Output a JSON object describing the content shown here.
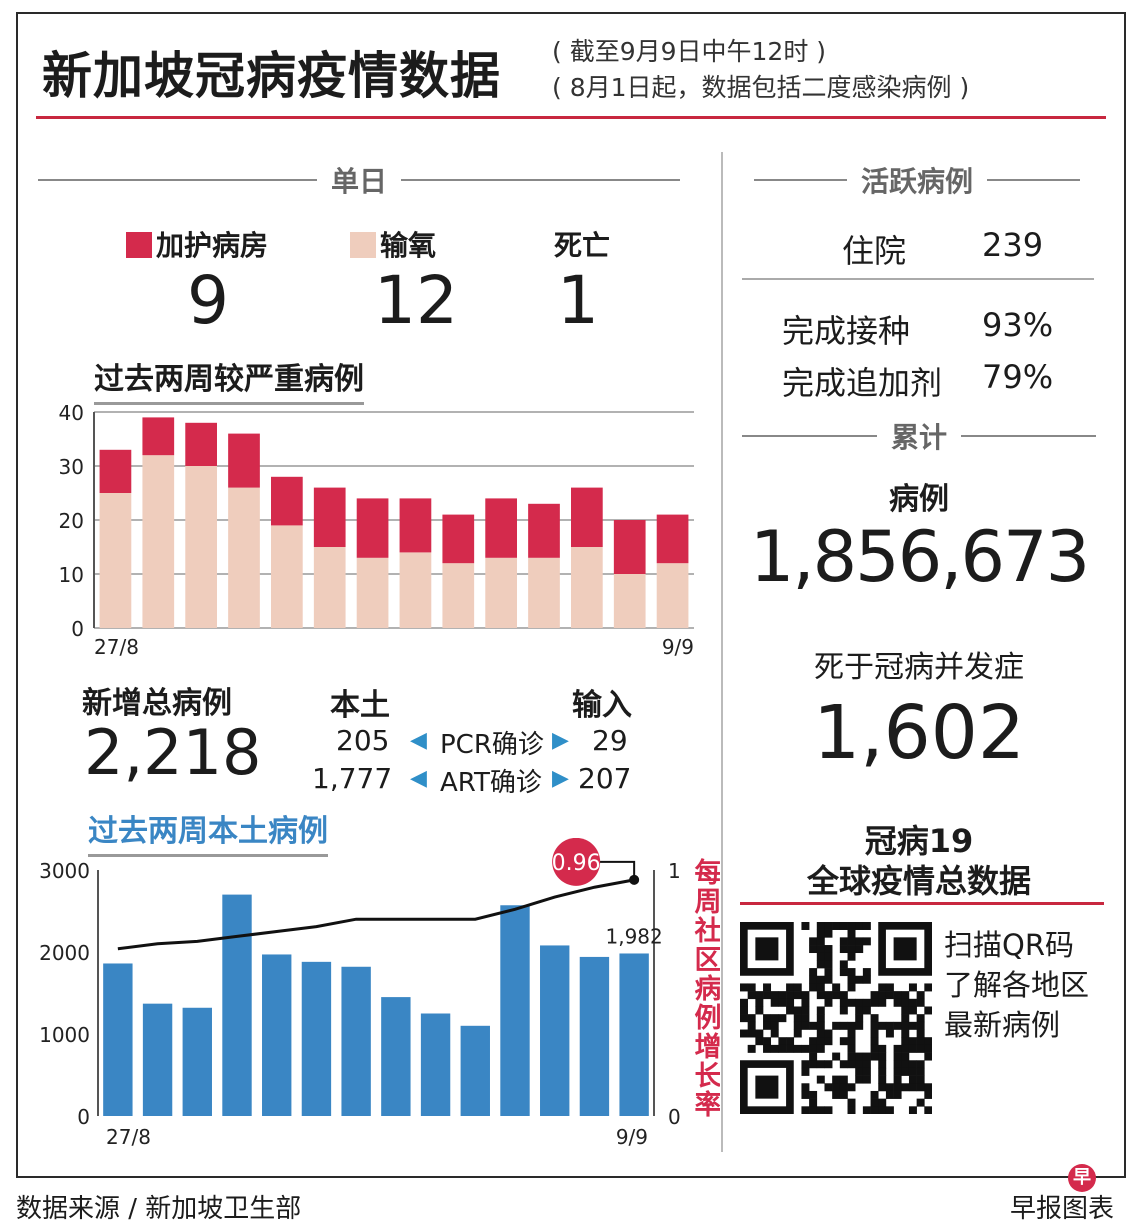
{
  "header": {
    "title": "新加坡冠病疫情数据",
    "subtitle_line1": "( 截至9月9日中午12时 )",
    "subtitle_line2": "( 8月1日起，数据包括二度感染病例 )"
  },
  "daily": {
    "section_label": "单日",
    "icu_label": "加护病房",
    "icu_value": "9",
    "oxygen_label": "输氧",
    "oxygen_value": "12",
    "deaths_label": "死亡",
    "deaths_value": "1"
  },
  "new_cases": {
    "label": "新增总病例",
    "total": "2,218",
    "local_label": "本土",
    "imported_label": "输入",
    "pcr_label": "PCR确诊",
    "art_label": "ART确诊",
    "pcr_local": "205",
    "pcr_imported": "29",
    "art_local": "1,777",
    "art_imported": "207"
  },
  "active": {
    "section_label": "活跃病例",
    "hospital_label": "住院",
    "hospital_value": "239",
    "vaccinated_label": "完成接种",
    "vaccinated_value": "93%",
    "booster_label": "完成追加剂",
    "booster_value": "79%"
  },
  "cumulative": {
    "section_label": "累计",
    "cases_label": "病例",
    "cases_value": "1,856,673",
    "deaths_label": "死于冠病并发症",
    "deaths_value": "1,602"
  },
  "global": {
    "title_line1": "冠病19",
    "title_line2": "全球疫情总数据",
    "qr_text1": "扫描QR码",
    "qr_text2": "了解各地区",
    "qr_text3": "最新病例"
  },
  "footer": {
    "source": "数据来源 / 新加坡卫生部",
    "credit": "早报图表",
    "logo_char": "早"
  },
  "colors": {
    "icu": "#d42a4c",
    "oxygen": "#efcdbd",
    "local_bar": "#3a86c4",
    "ratio_badge": "#d42a4c",
    "accent_line": "#c8283f"
  },
  "chart_data": [
    {
      "type": "bar",
      "title": "过去两周较严重病例",
      "stacked": true,
      "categories": [
        "27/8",
        "28/8",
        "29/8",
        "30/8",
        "31/8",
        "1/9",
        "2/9",
        "3/9",
        "4/9",
        "5/9",
        "6/9",
        "7/9",
        "8/9",
        "9/9"
      ],
      "x_tick_labels": [
        "27/8",
        "9/9"
      ],
      "series": [
        {
          "name": "输氧",
          "color": "#efcdbd",
          "values": [
            25,
            32,
            30,
            26,
            19,
            15,
            13,
            14,
            12,
            13,
            13,
            15,
            10,
            12
          ]
        },
        {
          "name": "加护病房",
          "color": "#d42a4c",
          "values": [
            8,
            7,
            8,
            10,
            9,
            11,
            11,
            10,
            9,
            11,
            10,
            11,
            10,
            9
          ]
        }
      ],
      "ylim": [
        0,
        40
      ],
      "yticks": [
        0,
        10,
        20,
        30,
        40
      ],
      "grid": true
    },
    {
      "type": "bar",
      "title": "过去两周本土病例",
      "categories": [
        "27/8",
        "28/8",
        "29/8",
        "30/8",
        "31/8",
        "1/9",
        "2/9",
        "3/9",
        "4/9",
        "5/9",
        "6/9",
        "7/9",
        "8/9",
        "9/9"
      ],
      "x_tick_labels": [
        "27/8",
        "9/9"
      ],
      "values": [
        1860,
        1370,
        1320,
        2700,
        1970,
        1880,
        1820,
        1450,
        1250,
        1100,
        2570,
        2080,
        1940,
        1982
      ],
      "last_value_label": "1,982",
      "ylim": [
        0,
        3000
      ],
      "yticks": [
        0,
        1000,
        2000,
        3000
      ],
      "secondary_axis": {
        "label": "每周社区病例增长率",
        "ylim": [
          0,
          1
        ],
        "ticks": [
          0,
          1
        ],
        "values": [
          0.68,
          0.7,
          0.71,
          0.73,
          0.75,
          0.77,
          0.8,
          0.8,
          0.8,
          0.8,
          0.84,
          0.89,
          0.93,
          0.96
        ],
        "last_value_label": "0.96"
      },
      "grid": false
    }
  ]
}
